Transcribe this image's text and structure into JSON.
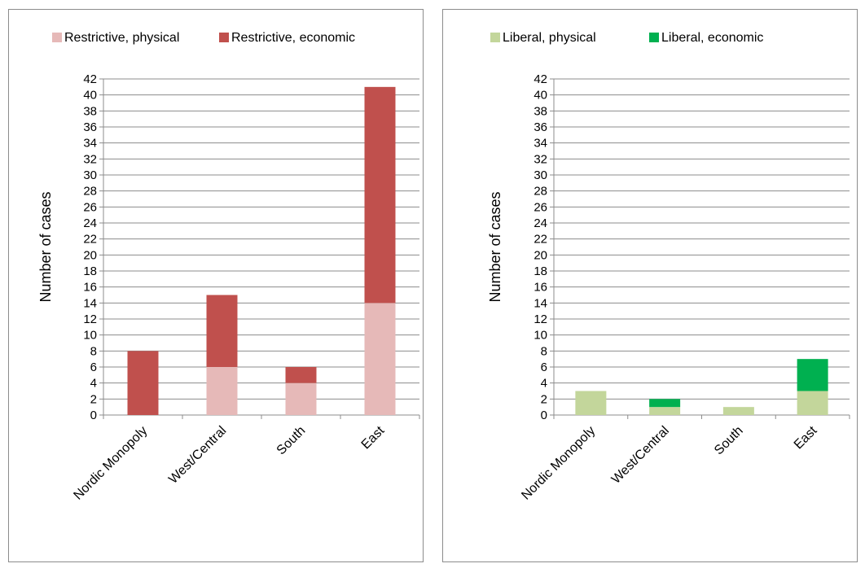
{
  "chart_data": [
    {
      "type": "bar",
      "stacked": true,
      "categories": [
        "Nordic Monopoly",
        "West/Central",
        "South",
        "East"
      ],
      "series": [
        {
          "name": "Restrictive, physical",
          "values": [
            0,
            6,
            4,
            14
          ],
          "color": "#e6b9b8"
        },
        {
          "name": "Restrictive, economic",
          "values": [
            8,
            9,
            2,
            27
          ],
          "color": "#c0504d"
        }
      ],
      "ylabel": "Number of cases",
      "ylim": [
        0,
        42
      ],
      "ytick_step": 2,
      "grid": true,
      "legend": "top"
    },
    {
      "type": "bar",
      "stacked": true,
      "categories": [
        "Nordic Monopoly",
        "West/Central",
        "South",
        "East"
      ],
      "series": [
        {
          "name": "Liberal, physical",
          "values": [
            3,
            1,
            1,
            3
          ],
          "color": "#c3d69b"
        },
        {
          "name": "Liberal, economic",
          "values": [
            0,
            1,
            0,
            4
          ],
          "color": "#00b050"
        }
      ],
      "ylabel": "Number of cases",
      "ylim": [
        0,
        42
      ],
      "ytick_step": 2,
      "grid": true,
      "legend": "top"
    }
  ]
}
